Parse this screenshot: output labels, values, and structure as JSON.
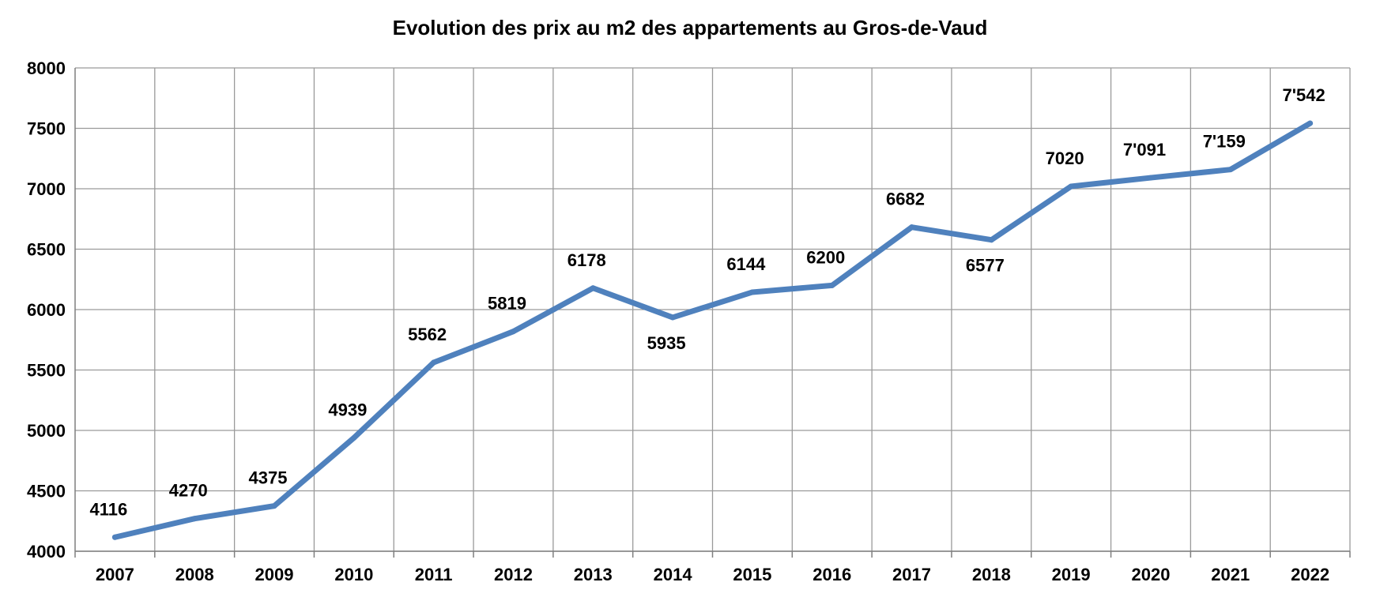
{
  "chart_data": {
    "type": "line",
    "title": "Evolution des prix au m2 des appartements au Gros-de-Vaud",
    "xlabel": "",
    "ylabel": "",
    "ylim": [
      4000,
      8000
    ],
    "yticks": [
      "4000",
      "4500",
      "5000",
      "5500",
      "6000",
      "6500",
      "7000",
      "7500",
      "8000"
    ],
    "grid": true,
    "legend": "none",
    "line_color": "#4f81bd",
    "categories": [
      "2007",
      "2008",
      "2009",
      "2010",
      "2011",
      "2012",
      "2013",
      "2014",
      "2015",
      "2016",
      "2017",
      "2018",
      "2019",
      "2020",
      "2021",
      "2022"
    ],
    "series": [
      {
        "values": [
          4116,
          4270,
          4375,
          4939,
          5562,
          5819,
          6178,
          5935,
          6144,
          6200,
          6682,
          6577,
          7020,
          7091,
          7159,
          7542
        ],
        "labels": [
          "4116",
          "4270",
          "4375",
          "4939",
          "5562",
          "5819",
          "6178",
          "5935",
          "6144",
          "6200",
          "6682",
          "6577",
          "7020",
          "7'091",
          "7'159",
          "7'542"
        ]
      }
    ]
  }
}
